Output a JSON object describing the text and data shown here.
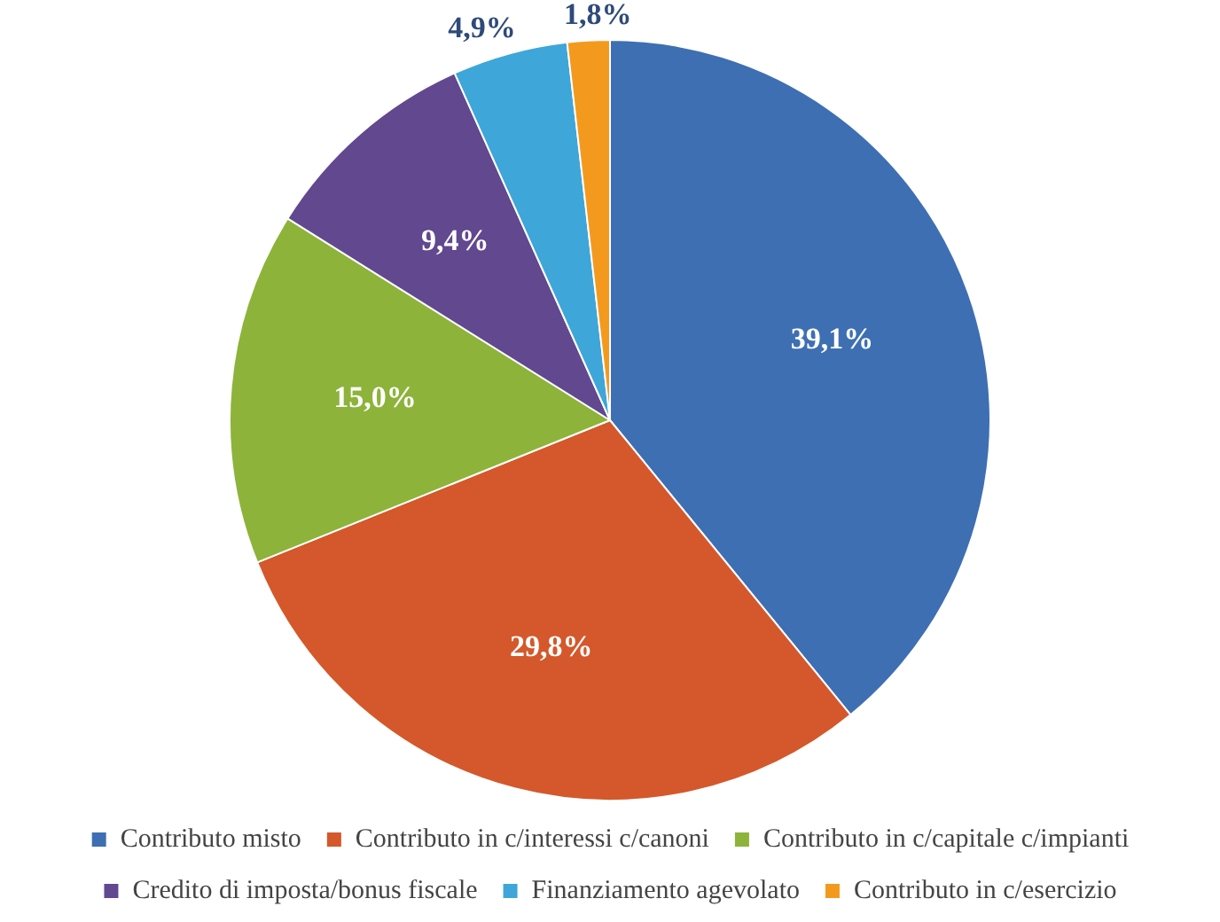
{
  "chart_data": {
    "type": "pie",
    "categories": [
      "Contributo misto",
      "Contributo in c/interessi c/canoni",
      "Contributo in c/capitale c/impianti",
      "Credito di imposta/bonus fiscale",
      "Finanziamento agevolato",
      "Contributo in c/esercizio"
    ],
    "values": [
      39.1,
      29.8,
      15.0,
      9.4,
      4.9,
      1.8
    ],
    "value_labels": [
      "39,1%",
      "29,8%",
      "15,0%",
      "9,4%",
      "4,9%",
      "1,8%"
    ],
    "colors": [
      "#3e6fb2",
      "#d4582b",
      "#8db33b",
      "#61488f",
      "#3ea6d8",
      "#f39a1e"
    ],
    "legend": "bottom"
  }
}
